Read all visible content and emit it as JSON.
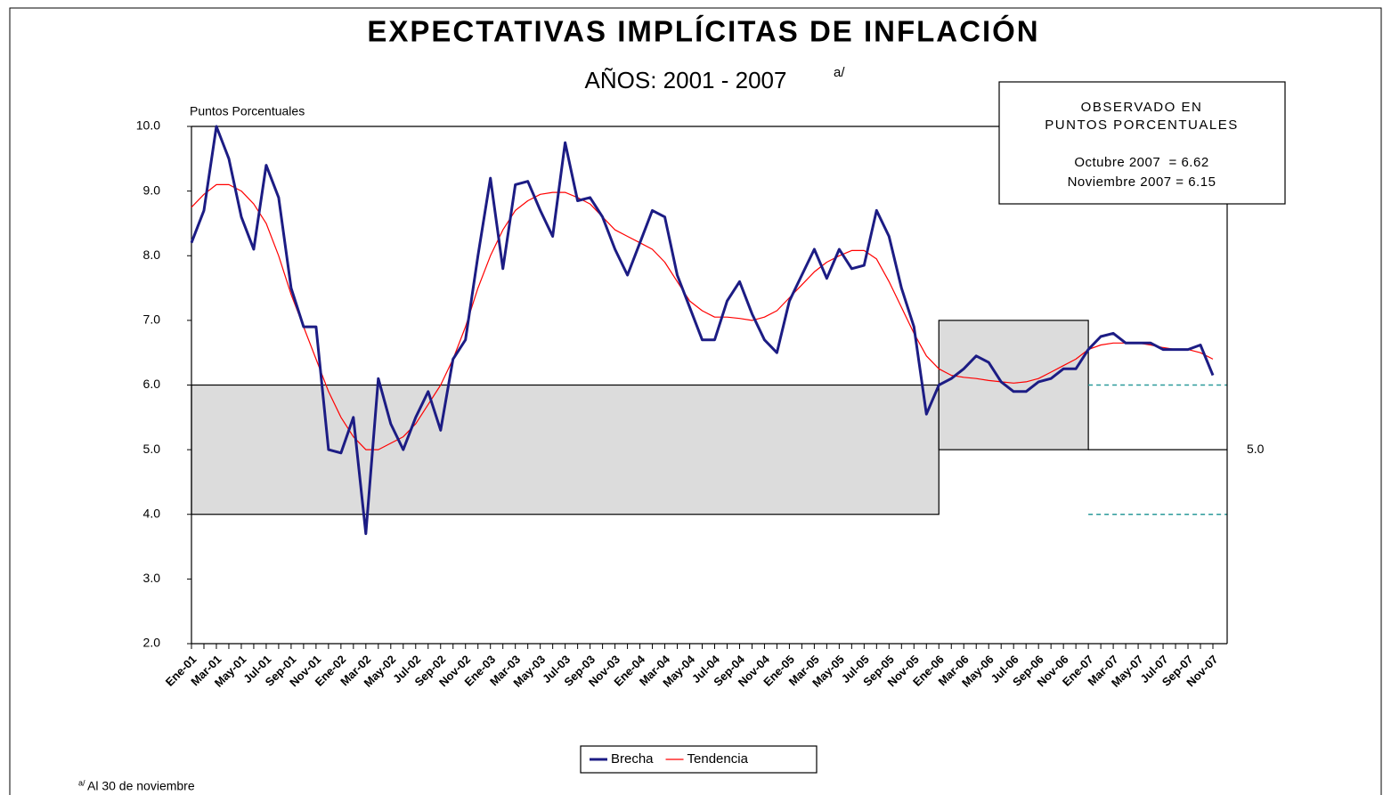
{
  "chart_data": {
    "type": "line",
    "title": "EXPECTATIVAS IMPLÍCITAS DE INFLACIÓN",
    "subtitle": "AÑOS: 2001 - 2007",
    "subtitle_note": "a/",
    "y_label": "Puntos Porcentuales",
    "annotation": [
      "OBSERVADO EN",
      "PUNTOS PORCENTUALES",
      "Octubre 2007  = 6.62",
      "Noviembre 2007 = 6.15"
    ],
    "footnote_mark": "a/",
    "footnote": "Al 30 de noviembre",
    "categories": [
      "Ene-01",
      null,
      "Mar-01",
      null,
      "May-01",
      null,
      "Jul-01",
      null,
      "Sep-01",
      null,
      "Nov-01",
      null,
      "Ene-02",
      null,
      "Mar-02",
      null,
      "May-02",
      null,
      "Jul-02",
      null,
      "Sep-02",
      null,
      "Nov-02",
      null,
      "Ene-03",
      null,
      "Mar-03",
      null,
      "May-03",
      null,
      "Jul-03",
      null,
      "Sep-03",
      null,
      "Nov-03",
      null,
      "Ene-04",
      null,
      "Mar-04",
      null,
      "May-04",
      null,
      "Jul-04",
      null,
      "Sep-04",
      null,
      "Nov-04",
      null,
      "Ene-05",
      null,
      "Mar-05",
      null,
      "May-05",
      null,
      "Jul-05",
      null,
      "Sep-05",
      null,
      "Nov-05",
      null,
      "Ene-06",
      null,
      "Mar-06",
      null,
      "May-06",
      null,
      "Jul-06",
      null,
      "Sep-06",
      null,
      "Nov-06",
      null,
      "Ene-07",
      null,
      "Mar-07",
      null,
      "May-07",
      null,
      "Jul-07",
      null,
      "Sep-07",
      null,
      "Nov-07"
    ],
    "series": [
      {
        "name": "Brecha",
        "color": "#1c1c84",
        "width": 3,
        "values": [
          8.2,
          8.7,
          10.0,
          9.5,
          8.6,
          8.1,
          9.4,
          8.9,
          7.5,
          6.9,
          6.9,
          5.0,
          4.95,
          5.5,
          3.7,
          6.1,
          5.4,
          5.0,
          5.5,
          5.9,
          5.3,
          6.4,
          6.7,
          8.0,
          9.2,
          7.8,
          9.1,
          9.15,
          8.7,
          8.3,
          9.75,
          8.85,
          8.9,
          8.6,
          8.1,
          7.7,
          8.2,
          8.7,
          8.6,
          7.7,
          7.2,
          6.7,
          6.7,
          7.3,
          7.6,
          7.1,
          6.7,
          6.5,
          7.3,
          7.7,
          8.1,
          7.65,
          8.1,
          7.8,
          7.85,
          8.7,
          8.3,
          7.5,
          6.9,
          5.55,
          6.0,
          6.1,
          6.25,
          6.45,
          6.35,
          6.05,
          5.9,
          5.9,
          6.05,
          6.1,
          6.25,
          6.25,
          6.55,
          6.75,
          6.8,
          6.65,
          6.65,
          6.65,
          6.55,
          6.55,
          6.55,
          6.62,
          6.15
        ]
      },
      {
        "name": "Tendencia",
        "color": "#ff0000",
        "width": 1.2,
        "values": [
          8.75,
          8.95,
          9.1,
          9.1,
          9.0,
          8.8,
          8.5,
          8.0,
          7.4,
          6.9,
          6.4,
          5.9,
          5.5,
          5.2,
          5.0,
          5.0,
          5.1,
          5.2,
          5.4,
          5.7,
          6.0,
          6.4,
          6.9,
          7.5,
          8.0,
          8.4,
          8.7,
          8.85,
          8.95,
          8.98,
          8.98,
          8.9,
          8.8,
          8.6,
          8.4,
          8.3,
          8.2,
          8.1,
          7.9,
          7.6,
          7.3,
          7.15,
          7.05,
          7.05,
          7.03,
          7.0,
          7.05,
          7.15,
          7.35,
          7.55,
          7.75,
          7.9,
          8.0,
          8.08,
          8.08,
          7.95,
          7.6,
          7.2,
          6.8,
          6.45,
          6.25,
          6.15,
          6.12,
          6.1,
          6.07,
          6.05,
          6.03,
          6.05,
          6.1,
          6.2,
          6.3,
          6.4,
          6.55,
          6.62,
          6.65,
          6.65,
          6.65,
          6.62,
          6.58,
          6.55,
          6.55,
          6.5,
          6.4
        ]
      }
    ],
    "bands": [
      {
        "from": "Ene-01",
        "to": "Ene-06",
        "low": 4,
        "high": 6,
        "style": "filled",
        "color": "#dcdcdc"
      },
      {
        "from": "Ene-06",
        "to": "Ene-07",
        "low": 5,
        "high": 7,
        "style": "filled",
        "color": "#dcdcdc"
      },
      {
        "from": "Ene-07",
        "low": 4,
        "high": 6,
        "style": "dashed",
        "color": "#2a9a9a"
      }
    ],
    "right_label": {
      "value": 5,
      "label": "5.0"
    },
    "ylim": [
      2,
      10
    ],
    "yticks": [
      {
        "value": 2,
        "label": "2.0"
      },
      {
        "value": 3,
        "label": "3.0"
      },
      {
        "value": 4,
        "label": "4.0"
      },
      {
        "value": 5,
        "label": "5.0"
      },
      {
        "value": 6,
        "label": "6.0"
      },
      {
        "value": 7,
        "label": "7.0"
      },
      {
        "value": 8,
        "label": "8.0"
      },
      {
        "value": 9,
        "label": "9.0"
      },
      {
        "value": 10,
        "label": "10.0"
      }
    ],
    "legend": "bottom"
  }
}
